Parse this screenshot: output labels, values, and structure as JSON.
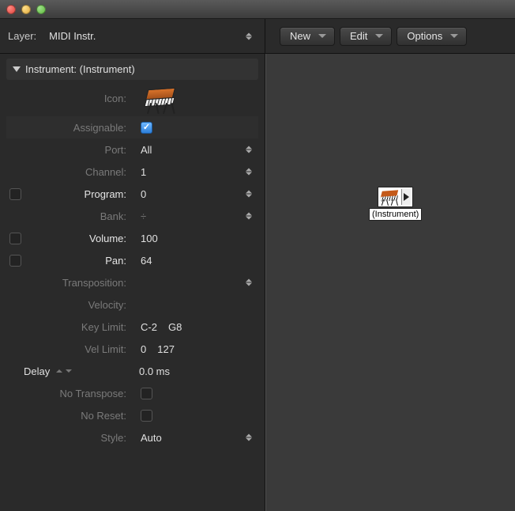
{
  "colors": {
    "window_bg": "#2a2a2a",
    "canvas_bg": "#3a3a3a",
    "text": "#e0e0e0",
    "text_dim": "#7a7a7a",
    "accent_checkbox": "#2d7fd9"
  },
  "titlebar": {
    "buttons": [
      "close",
      "minimize",
      "zoom"
    ]
  },
  "topbar": {
    "layer_label": "Layer:",
    "layer_value": "MIDI Instr.",
    "buttons": {
      "new": "New",
      "edit": "Edit",
      "options": "Options"
    }
  },
  "inspector": {
    "header": "Instrument:  (Instrument)",
    "icon_label": "Icon:",
    "icon_name": "synth-keyboard",
    "params": {
      "assignable": {
        "label": "Assignable:",
        "checked": true
      },
      "port": {
        "label": "Port:",
        "value": "All"
      },
      "channel": {
        "label": "Channel:",
        "value": "1"
      },
      "program": {
        "label": "Program:",
        "value": "0",
        "has_checkbox": true,
        "checked": false
      },
      "bank": {
        "label": "Bank:",
        "value": "÷"
      },
      "volume": {
        "label": "Volume:",
        "value": "100",
        "has_checkbox": true,
        "checked": false
      },
      "pan": {
        "label": "Pan:",
        "value": "64",
        "has_checkbox": true,
        "checked": false
      },
      "transposition": {
        "label": "Transposition:",
        "value": ""
      },
      "velocity": {
        "label": "Velocity:",
        "value": ""
      },
      "key_limit": {
        "label": "Key Limit:",
        "low": "C-2",
        "high": "G8"
      },
      "vel_limit": {
        "label": "Vel Limit:",
        "low": "0",
        "high": "127"
      },
      "delay": {
        "label": "Delay",
        "value": "0.0 ms"
      },
      "no_transpose": {
        "label": "No Transpose:",
        "checked": false
      },
      "no_reset": {
        "label": "No Reset:",
        "checked": false
      },
      "style": {
        "label": "Style:",
        "value": "Auto"
      }
    }
  },
  "canvas": {
    "object_label": "(Instrument)"
  }
}
